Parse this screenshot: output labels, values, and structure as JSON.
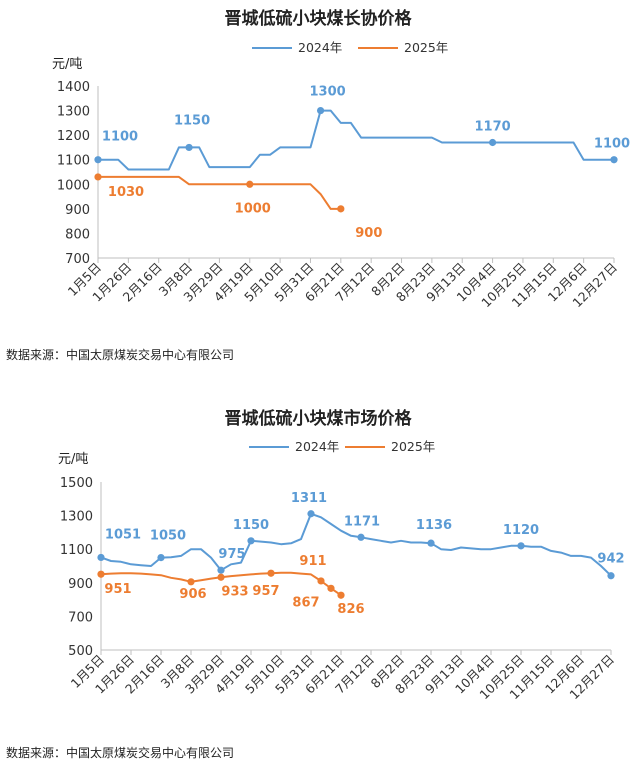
{
  "colors": {
    "s2024": "#5b9bd5",
    "s2025": "#ed7d31",
    "axis": "#bfbfbf",
    "text": "#333333"
  },
  "chart_data": [
    {
      "type": "line",
      "title": "晋城低硫小块煤长协价格",
      "ylabel": "元/吨",
      "ylim": [
        700,
        1400
      ],
      "yticks": [
        700,
        800,
        900,
        1000,
        1100,
        1200,
        1300,
        1400
      ],
      "grid": false,
      "legend_position": "top-center",
      "x_ticks": [
        "1月5日",
        "1月26日",
        "2月16日",
        "3月8日",
        "3月29日",
        "4月19日",
        "5月10日",
        "5月31日",
        "6月21日",
        "7月12日",
        "8月2日",
        "8月23日",
        "9月13日",
        "10月4日",
        "10月25日",
        "11月15日",
        "12月6日",
        "12月27日"
      ],
      "source": "数据来源：中国太原煤炭交易中心有限公司",
      "series": [
        {
          "name": "2024年",
          "x": [
            "01-05",
            "01-12",
            "01-19",
            "01-26",
            "02-02",
            "02-09",
            "02-16",
            "02-23",
            "03-01",
            "03-08",
            "03-15",
            "03-22",
            "03-29",
            "04-05",
            "04-12",
            "04-19",
            "04-26",
            "05-03",
            "05-10",
            "05-17",
            "05-24",
            "05-31",
            "06-07",
            "06-14",
            "06-21",
            "06-28",
            "07-05",
            "07-12",
            "07-19",
            "07-26",
            "08-02",
            "08-09",
            "08-16",
            "08-23",
            "08-30",
            "09-06",
            "09-13",
            "09-20",
            "09-27",
            "10-04",
            "10-11",
            "10-18",
            "10-25",
            "11-01",
            "11-08",
            "11-15",
            "11-22",
            "11-29",
            "12-06",
            "12-13",
            "12-20",
            "12-27"
          ],
          "values": [
            1100,
            1100,
            1100,
            1060,
            1060,
            1060,
            1060,
            1060,
            1150,
            1150,
            1150,
            1070,
            1070,
            1070,
            1070,
            1070,
            1120,
            1120,
            1150,
            1150,
            1150,
            1150,
            1300,
            1300,
            1250,
            1250,
            1190,
            1190,
            1190,
            1190,
            1190,
            1190,
            1190,
            1190,
            1170,
            1170,
            1170,
            1170,
            1170,
            1170,
            1170,
            1170,
            1170,
            1170,
            1170,
            1170,
            1170,
            1170,
            1100,
            1100,
            1100,
            1100
          ]
        },
        {
          "name": "2025年",
          "x": [
            "01-05",
            "01-12",
            "01-19",
            "01-26",
            "02-02",
            "02-09",
            "02-16",
            "02-23",
            "03-01",
            "03-08",
            "03-15",
            "03-22",
            "03-29",
            "04-05",
            "04-12",
            "04-19",
            "04-26",
            "05-03",
            "05-10",
            "05-17",
            "05-24",
            "05-31",
            "06-07",
            "06-14",
            "06-21"
          ],
          "values": [
            1030,
            1030,
            1030,
            1030,
            1030,
            1030,
            1030,
            1030,
            1030,
            1000,
            1000,
            1000,
            1000,
            1000,
            1000,
            1000,
            1000,
            1000,
            1000,
            1000,
            1000,
            1000,
            960,
            900,
            900
          ]
        }
      ],
      "annotations": [
        {
          "series": 0,
          "x": "01-05",
          "value": "1100"
        },
        {
          "series": 0,
          "x": "03-08",
          "value": "1150"
        },
        {
          "series": 0,
          "x": "06-07",
          "value": "1300"
        },
        {
          "series": 0,
          "x": "10-04",
          "value": "1170"
        },
        {
          "series": 0,
          "x": "12-27",
          "value": "1100"
        },
        {
          "series": 1,
          "x": "01-05",
          "value": "1030"
        },
        {
          "series": 1,
          "x": "04-19",
          "value": "1000"
        },
        {
          "series": 1,
          "x": "06-21",
          "value": "900"
        }
      ]
    },
    {
      "type": "line",
      "title": "晋城低硫小块煤市场价格",
      "ylabel": "元/吨",
      "ylim": [
        500,
        1500
      ],
      "yticks": [
        500,
        700,
        900,
        1100,
        1300,
        1500
      ],
      "grid": false,
      "legend_position": "top-center",
      "x_ticks": [
        "1月5日",
        "1月26日",
        "2月16日",
        "3月8日",
        "3月29日",
        "4月19日",
        "5月10日",
        "5月31日",
        "6月21日",
        "7月12日",
        "8月2日",
        "8月23日",
        "9月13日",
        "10月4日",
        "10月25日",
        "11月15日",
        "12月6日",
        "12月27日"
      ],
      "source": "数据来源：中国太原煤炭交易中心有限公司",
      "series": [
        {
          "name": "2024年",
          "x": [
            "01-05",
            "01-12",
            "01-19",
            "01-26",
            "02-02",
            "02-09",
            "02-16",
            "02-23",
            "03-01",
            "03-08",
            "03-15",
            "03-22",
            "03-29",
            "04-05",
            "04-12",
            "04-19",
            "04-26",
            "05-03",
            "05-10",
            "05-17",
            "05-24",
            "05-31",
            "06-07",
            "06-14",
            "06-21",
            "06-28",
            "07-05",
            "07-12",
            "07-19",
            "07-26",
            "08-02",
            "08-09",
            "08-16",
            "08-23",
            "08-30",
            "09-06",
            "09-13",
            "09-20",
            "09-27",
            "10-04",
            "10-11",
            "10-18",
            "10-25",
            "11-01",
            "11-08",
            "11-15",
            "11-22",
            "11-29",
            "12-06",
            "12-13",
            "12-20",
            "12-27"
          ],
          "values": [
            1051,
            1030,
            1025,
            1010,
            1005,
            1000,
            1050,
            1052,
            1060,
            1100,
            1100,
            1050,
            975,
            1010,
            1020,
            1150,
            1145,
            1140,
            1130,
            1135,
            1160,
            1311,
            1290,
            1250,
            1210,
            1180,
            1171,
            1160,
            1150,
            1140,
            1150,
            1140,
            1140,
            1136,
            1100,
            1095,
            1110,
            1105,
            1100,
            1100,
            1110,
            1120,
            1120,
            1115,
            1115,
            1090,
            1080,
            1060,
            1060,
            1050,
            1000,
            942
          ]
        },
        {
          "name": "2025年",
          "x": [
            "01-05",
            "01-12",
            "01-19",
            "01-26",
            "02-02",
            "02-09",
            "02-16",
            "02-23",
            "03-01",
            "03-08",
            "03-15",
            "03-22",
            "03-29",
            "04-05",
            "04-12",
            "04-19",
            "04-26",
            "05-03",
            "05-10",
            "05-17",
            "05-24",
            "05-31",
            "06-07",
            "06-14",
            "06-21"
          ],
          "values": [
            951,
            955,
            957,
            957,
            955,
            950,
            945,
            930,
            920,
            906,
            915,
            925,
            933,
            940,
            945,
            950,
            955,
            957,
            960,
            960,
            955,
            950,
            911,
            867,
            826
          ]
        }
      ],
      "annotations": [
        {
          "series": 0,
          "x": "01-05",
          "value": "1051"
        },
        {
          "series": 0,
          "x": "02-16",
          "value": "1050"
        },
        {
          "series": 0,
          "x": "03-29",
          "value": "975"
        },
        {
          "series": 0,
          "x": "04-19",
          "value": "1150"
        },
        {
          "series": 0,
          "x": "05-31",
          "value": "1311"
        },
        {
          "series": 0,
          "x": "07-05",
          "value": "1171"
        },
        {
          "series": 0,
          "x": "08-23",
          "value": "1136"
        },
        {
          "series": 0,
          "x": "10-25",
          "value": "1120"
        },
        {
          "series": 0,
          "x": "12-27",
          "value": "942"
        },
        {
          "series": 1,
          "x": "01-05",
          "value": "951"
        },
        {
          "series": 1,
          "x": "03-08",
          "value": "906"
        },
        {
          "series": 1,
          "x": "03-29",
          "value": "933"
        },
        {
          "series": 1,
          "x": "05-03",
          "value": "957"
        },
        {
          "series": 1,
          "x": "06-07",
          "value": "911"
        },
        {
          "series": 1,
          "x": "06-14",
          "value": "867"
        },
        {
          "series": 1,
          "x": "06-21",
          "value": "826"
        }
      ]
    }
  ]
}
